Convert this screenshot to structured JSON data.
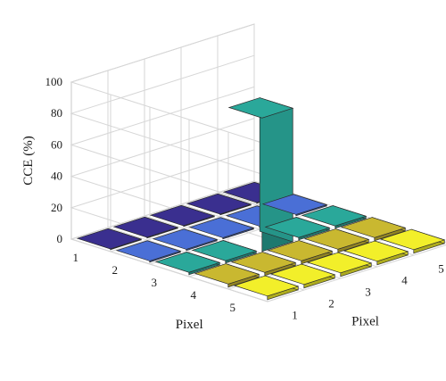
{
  "chart_data": {
    "type": "bar3d",
    "title": "",
    "zlabel": "CCE (%)",
    "xlabel": "Pixel",
    "ylabel": "Pixel",
    "zlim": [
      0,
      100
    ],
    "z_ticks": [
      "0",
      "20",
      "40",
      "60",
      "80",
      "100"
    ],
    "x_ticks": [
      "1",
      "2",
      "3",
      "4",
      "5"
    ],
    "y_ticks": [
      "1",
      "2",
      "3",
      "4",
      "5"
    ],
    "grid": true,
    "colormap": "parula",
    "values": [
      [
        0.5,
        0.5,
        0.5,
        0.5,
        0.5
      ],
      [
        0.8,
        0.8,
        0.8,
        0.8,
        0.8
      ],
      [
        1.5,
        1.5,
        85,
        1.5,
        1.5
      ],
      [
        2.0,
        2.0,
        2.0,
        2.0,
        2.0
      ],
      [
        2.3,
        2.3,
        2.3,
        2.3,
        2.3
      ]
    ],
    "colors": {
      "bar_x1": "#3a2f8f",
      "bar_x2": "#4a6fd6",
      "bar_x3": "#2aa89a",
      "bar_x4": "#c9b830",
      "bar_x5": "#f2ef2a"
    }
  }
}
